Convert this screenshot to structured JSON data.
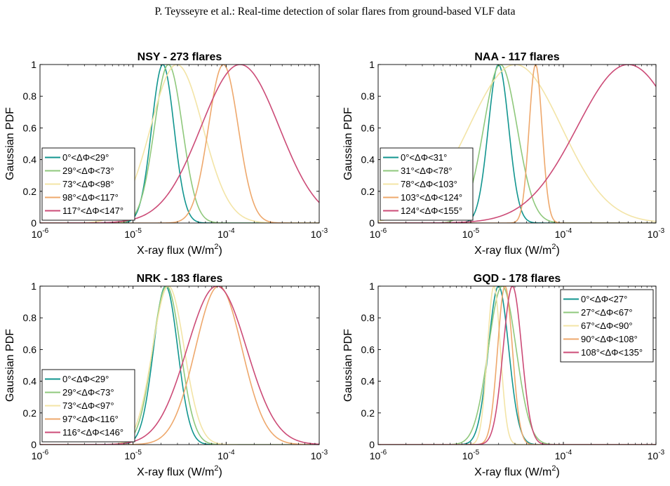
{
  "header": {
    "running_title": "P. Teysseyre et al.: Real-time detection of solar flares from ground-based VLF data"
  },
  "chart_data": [
    {
      "type": "line",
      "title": "NSY - 273 flares",
      "xlabel": "X-ray flux (W/m2)",
      "ylabel": "Gaussian PDF",
      "xscale": "log",
      "xlim": [
        1e-06,
        0.001
      ],
      "ylim": [
        0,
        1
      ],
      "x_ticks": [
        {
          "base": "10",
          "exp": "-6"
        },
        {
          "base": "10",
          "exp": "-5"
        },
        {
          "base": "10",
          "exp": "-4"
        },
        {
          "base": "10",
          "exp": "-3"
        }
      ],
      "y_ticks": [
        "0",
        "0.2",
        "0.4",
        "0.6",
        "0.8",
        "1"
      ],
      "legend_position": "bottom-left",
      "series": [
        {
          "name": "0°<ΔΦ<29°",
          "color": "#11958f",
          "peak_log10_flux": -4.68,
          "log10_sigma": 0.12
        },
        {
          "name": "29°<ΔΦ<73°",
          "color": "#8fc87c",
          "peak_log10_flux": -4.62,
          "log10_sigma": 0.15
        },
        {
          "name": "73°<ΔΦ<98°",
          "color": "#f3e4a6",
          "peak_log10_flux": -4.53,
          "log10_sigma": 0.28
        },
        {
          "name": "98°<ΔΦ<117°",
          "color": "#eea86c",
          "peak_log10_flux": -4.03,
          "log10_sigma": 0.16
        },
        {
          "name": "117°<ΔΦ<147°",
          "color": "#cc4b77",
          "peak_log10_flux": -3.85,
          "log10_sigma": 0.42
        }
      ]
    },
    {
      "type": "line",
      "title": "NAA - 117 flares",
      "xlabel": "X-ray flux (W/m2)",
      "ylabel": "Gaussian PDF",
      "xscale": "log",
      "xlim": [
        1e-06,
        0.001
      ],
      "ylim": [
        0,
        1
      ],
      "x_ticks": [
        {
          "base": "10",
          "exp": "-6"
        },
        {
          "base": "10",
          "exp": "-5"
        },
        {
          "base": "10",
          "exp": "-4"
        },
        {
          "base": "10",
          "exp": "-3"
        }
      ],
      "y_ticks": [
        "0",
        "0.2",
        "0.4",
        "0.6",
        "0.8",
        "1"
      ],
      "legend_position": "bottom-left",
      "series": [
        {
          "name": "0°<ΔΦ<31°",
          "color": "#11958f",
          "peak_log10_flux": -4.7,
          "log10_sigma": 0.11
        },
        {
          "name": "31°<ΔΦ<78°",
          "color": "#8fc87c",
          "peak_log10_flux": -4.68,
          "log10_sigma": 0.18
        },
        {
          "name": "78°<ΔΦ<103°",
          "color": "#f3e4a6",
          "peak_log10_flux": -4.52,
          "log10_sigma": 0.5
        },
        {
          "name": "103°<ΔΦ<124°",
          "color": "#eea86c",
          "peak_log10_flux": -4.3,
          "log10_sigma": 0.07
        },
        {
          "name": "124°<ΔΦ<155°",
          "color": "#cc4b77",
          "peak_log10_flux": -3.3,
          "log10_sigma": 0.55
        }
      ]
    },
    {
      "type": "line",
      "title": "NRK - 183 flares",
      "xlabel": "X-ray flux (W/m2)",
      "ylabel": "Gaussian PDF",
      "xscale": "log",
      "xlim": [
        1e-06,
        0.001
      ],
      "ylim": [
        0,
        1
      ],
      "x_ticks": [
        {
          "base": "10",
          "exp": "-6"
        },
        {
          "base": "10",
          "exp": "-5"
        },
        {
          "base": "10",
          "exp": "-4"
        },
        {
          "base": "10",
          "exp": "-3"
        }
      ],
      "y_ticks": [
        "0",
        "0.2",
        "0.4",
        "0.6",
        "0.8",
        "1"
      ],
      "legend_position": "bottom-left",
      "series": [
        {
          "name": "0°<ΔΦ<29°",
          "color": "#11958f",
          "peak_log10_flux": -4.65,
          "log10_sigma": 0.13
        },
        {
          "name": "29°<ΔΦ<73°",
          "color": "#8fc87c",
          "peak_log10_flux": -4.64,
          "log10_sigma": 0.15
        },
        {
          "name": "73°<ΔΦ<97°",
          "color": "#f3e4a6",
          "peak_log10_flux": -4.62,
          "log10_sigma": 0.17
        },
        {
          "name": "97°<ΔΦ<116°",
          "color": "#eea86c",
          "peak_log10_flux": -4.08,
          "log10_sigma": 0.25
        },
        {
          "name": "116°<ΔΦ<146°",
          "color": "#cc4b77",
          "peak_log10_flux": -4.1,
          "log10_sigma": 0.32
        }
      ]
    },
    {
      "type": "line",
      "title": "GQD - 178 flares",
      "xlabel": "X-ray flux (W/m2)",
      "ylabel": "Gaussian PDF",
      "xscale": "log",
      "xlim": [
        1e-06,
        0.001
      ],
      "ylim": [
        0,
        1
      ],
      "x_ticks": [
        {
          "base": "10",
          "exp": "-6"
        },
        {
          "base": "10",
          "exp": "-5"
        },
        {
          "base": "10",
          "exp": "-4"
        },
        {
          "base": "10",
          "exp": "-3"
        }
      ],
      "y_ticks": [
        "0",
        "0.2",
        "0.4",
        "0.6",
        "0.8",
        "1"
      ],
      "legend_position": "top-right",
      "series": [
        {
          "name": "0°<ΔΦ<27°",
          "color": "#11958f",
          "peak_log10_flux": -4.7,
          "log10_sigma": 0.11
        },
        {
          "name": "27°<ΔΦ<67°",
          "color": "#8fc87c",
          "peak_log10_flux": -4.66,
          "log10_sigma": 0.15
        },
        {
          "name": "67°<ΔΦ<90°",
          "color": "#f3e4a6",
          "peak_log10_flux": -4.75,
          "log10_sigma": 0.07
        },
        {
          "name": "90°<ΔΦ<108°",
          "color": "#eea86c",
          "peak_log10_flux": -4.63,
          "log10_sigma": 0.08
        },
        {
          "name": "108°<ΔΦ<135°",
          "color": "#cc4b77",
          "peak_log10_flux": -4.55,
          "log10_sigma": 0.1
        }
      ]
    }
  ]
}
